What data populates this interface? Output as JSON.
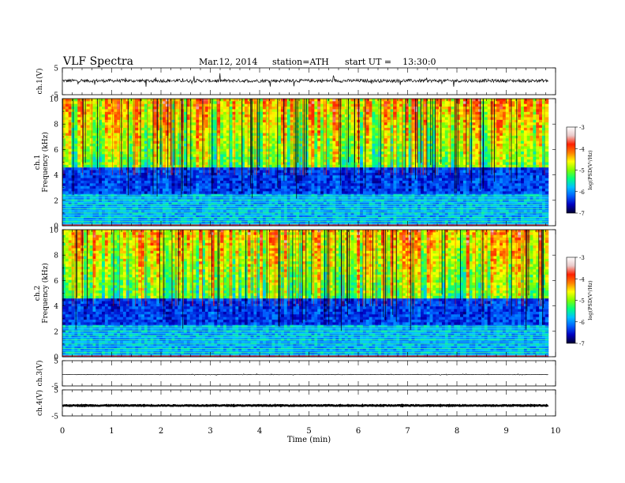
{
  "header": {
    "title": "VLF  Spectra",
    "date": "Mar.12, 2014",
    "station": "station=ATH",
    "start_label": "start  UT  =",
    "start_time": "13:30:0"
  },
  "colorbar": {
    "label": "log(PSD(V²/Hz)",
    "ticks": [
      "-3",
      "-4",
      "-5",
      "-6",
      "-7"
    ],
    "colors": [
      "#ffffff",
      "#e8c8c8",
      "#ff2000",
      "#ff8000",
      "#ffff00",
      "#80ff00",
      "#00ff80",
      "#00c0ff",
      "#0060ff",
      "#0000c0",
      "#000030"
    ]
  },
  "chart_data": [
    {
      "type": "line",
      "name": "ch1-waveform",
      "ylabel": "ch.1(V)",
      "ylim": [
        -5,
        5
      ],
      "y_ticks": [
        "5",
        "-5"
      ],
      "xlim": [
        0,
        10
      ],
      "mean_value": 0.2,
      "noise_amplitude": 0.6,
      "spike_amplitude": 2.5,
      "end_time": 9.85
    },
    {
      "type": "heatmap",
      "name": "ch1-spectrogram",
      "ylabel": "ch.1",
      "ylabel2": "Frequency  (kHz)",
      "ylim": [
        0,
        10
      ],
      "y_ticks": [
        "0",
        "2",
        "4",
        "6",
        "8",
        "10"
      ],
      "xlim": [
        0,
        10
      ],
      "end_time": 9.85,
      "zlim": [
        -7,
        -3
      ],
      "colorbar_label": "log(PSD(V²/Hz)"
    },
    {
      "type": "heatmap",
      "name": "ch2-spectrogram",
      "ylabel": "ch.2",
      "ylabel2": "Frequency  (kHz)",
      "ylim": [
        0,
        10
      ],
      "y_ticks": [
        "0",
        "2",
        "4",
        "6",
        "8",
        "10"
      ],
      "xlim": [
        0,
        10
      ],
      "end_time": 9.85,
      "zlim": [
        -7,
        -3
      ],
      "colorbar_label": "log(PSD(V²/Hz)"
    },
    {
      "type": "line",
      "name": "ch3-waveform",
      "ylabel": "ch.3(V)",
      "ylim": [
        -5,
        5
      ],
      "y_ticks": [
        "5",
        "-5"
      ],
      "xlim": [
        0,
        10
      ],
      "mean_value": -0.5,
      "noise_amplitude": 0.05,
      "spike_amplitude": 0.3,
      "end_time": 9.85
    },
    {
      "type": "line",
      "name": "ch4-waveform",
      "ylabel": "ch.4(V)",
      "ylim": [
        -5,
        5
      ],
      "y_ticks": [
        "5",
        "-5"
      ],
      "xlim": [
        0,
        10
      ],
      "mean_value": -1.0,
      "noise_amplitude": 0.15,
      "spike_amplitude": 0.15,
      "end_time": 9.85
    }
  ],
  "x_axis": {
    "xlabel": "Time  (min)",
    "ticks": [
      "0",
      "1",
      "2",
      "3",
      "4",
      "5",
      "6",
      "7",
      "8",
      "9",
      "10"
    ]
  }
}
